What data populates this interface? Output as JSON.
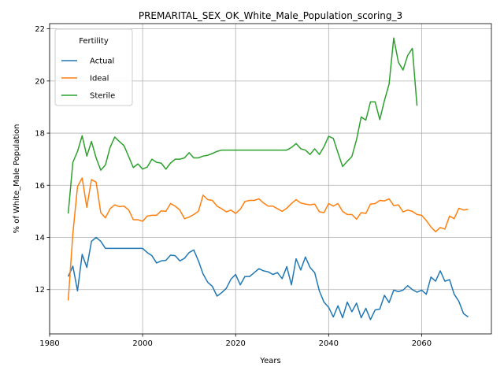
{
  "chart_data": {
    "type": "line",
    "title": "PREMARITAL_SEX_OK_White_Male_Population_scoring_3",
    "xlabel": "Years",
    "ylabel": "% of White_Male Population",
    "xlim": [
      1980,
      2075
    ],
    "ylim": [
      10.3,
      22.2
    ],
    "xticks": [
      1980,
      2000,
      2020,
      2040,
      2060
    ],
    "yticks": [
      12,
      14,
      16,
      18,
      20,
      22
    ],
    "grid": true,
    "legend": {
      "title": "Fertility",
      "position": "top-left"
    },
    "series": [
      {
        "name": "Actual",
        "color": "#1f77b4",
        "x": [
          1984,
          1985,
          1986,
          1987,
          1988,
          1989,
          1990,
          1991,
          1992,
          1993,
          1994,
          1995,
          1996,
          1997,
          1998,
          1999,
          2000,
          2001,
          2002,
          2003,
          2004,
          2005,
          2006,
          2007,
          2008,
          2009,
          2010,
          2011,
          2012,
          2013,
          2014,
          2015,
          2016,
          2017,
          2018,
          2019,
          2020,
          2021,
          2022,
          2023,
          2024,
          2025,
          2026,
          2027,
          2028,
          2029,
          2030,
          2031,
          2032,
          2033,
          2034,
          2035,
          2036,
          2037,
          2038,
          2039,
          2040,
          2041,
          2042,
          2043,
          2044,
          2045,
          2046,
          2047,
          2048,
          2049,
          2050,
          2051,
          2052,
          2053,
          2054,
          2055,
          2056,
          2057,
          2058,
          2059,
          2060,
          2061,
          2062,
          2063,
          2064,
          2065,
          2066,
          2067,
          2068,
          2069,
          2070
        ],
        "y": [
          12.5,
          12.9,
          11.95,
          13.35,
          12.85,
          13.85,
          14.0,
          13.85,
          13.58,
          13.58,
          13.58,
          13.58,
          13.58,
          13.58,
          13.58,
          13.58,
          13.58,
          13.42,
          13.3,
          13.02,
          13.1,
          13.12,
          13.32,
          13.3,
          13.1,
          13.2,
          13.42,
          13.52,
          13.1,
          12.6,
          12.28,
          12.12,
          11.75,
          11.88,
          12.05,
          12.4,
          12.58,
          12.18,
          12.5,
          12.5,
          12.65,
          12.8,
          12.72,
          12.68,
          12.58,
          12.65,
          12.42,
          12.88,
          12.18,
          13.18,
          12.75,
          13.25,
          12.85,
          12.65,
          11.95,
          11.52,
          11.32,
          10.95,
          11.38,
          10.92,
          11.52,
          11.15,
          11.48,
          10.92,
          11.28,
          10.85,
          11.22,
          11.25,
          11.78,
          11.5,
          11.98,
          11.92,
          11.98,
          12.15,
          12.0,
          11.9,
          11.98,
          11.82,
          12.48,
          12.32,
          12.72,
          12.32,
          12.38,
          11.82,
          11.55,
          11.08,
          10.95
        ]
      },
      {
        "name": "Ideal",
        "color": "#ff7f0e",
        "x": [
          1984,
          1985,
          1986,
          1987,
          1988,
          1989,
          1990,
          1991,
          1992,
          1993,
          1994,
          1995,
          1996,
          1997,
          1998,
          1999,
          2000,
          2001,
          2002,
          2003,
          2004,
          2005,
          2006,
          2007,
          2008,
          2009,
          2010,
          2011,
          2012,
          2013,
          2014,
          2015,
          2016,
          2017,
          2018,
          2019,
          2020,
          2021,
          2022,
          2023,
          2024,
          2025,
          2026,
          2027,
          2028,
          2029,
          2030,
          2031,
          2032,
          2033,
          2034,
          2035,
          2036,
          2037,
          2038,
          2039,
          2040,
          2041,
          2042,
          2043,
          2044,
          2045,
          2046,
          2047,
          2048,
          2049,
          2050,
          2051,
          2052,
          2053,
          2054,
          2055,
          2056,
          2057,
          2058,
          2059,
          2060,
          2061,
          2062,
          2063,
          2064,
          2065,
          2066,
          2067,
          2068,
          2069,
          2070
        ],
        "y": [
          11.58,
          14.15,
          15.95,
          16.28,
          15.15,
          16.22,
          16.12,
          14.95,
          14.75,
          15.1,
          15.25,
          15.18,
          15.2,
          15.05,
          14.68,
          14.68,
          14.62,
          14.82,
          14.85,
          14.85,
          15.02,
          15.0,
          15.3,
          15.2,
          15.05,
          14.72,
          14.78,
          14.88,
          15.0,
          15.62,
          15.45,
          15.42,
          15.2,
          15.1,
          14.98,
          15.05,
          14.92,
          15.08,
          15.38,
          15.42,
          15.42,
          15.48,
          15.32,
          15.2,
          15.2,
          15.1,
          15.0,
          15.12,
          15.3,
          15.45,
          15.32,
          15.28,
          15.25,
          15.28,
          14.98,
          14.95,
          15.3,
          15.2,
          15.3,
          15.0,
          14.88,
          14.88,
          14.7,
          14.95,
          14.92,
          15.28,
          15.3,
          15.42,
          15.4,
          15.48,
          15.22,
          15.25,
          14.98,
          15.05,
          15.0,
          14.88,
          14.85,
          14.65,
          14.4,
          14.22,
          14.38,
          14.32,
          14.82,
          14.72,
          15.12,
          15.05,
          15.08
        ]
      },
      {
        "name": "Sterile",
        "color": "#2ca02c",
        "x": [
          1984,
          1985,
          1986,
          1987,
          1988,
          1989,
          1990,
          1991,
          1992,
          1993,
          1994,
          1995,
          1996,
          1997,
          1998,
          1999,
          2000,
          2001,
          2002,
          2003,
          2004,
          2005,
          2006,
          2007,
          2008,
          2009,
          2010,
          2011,
          2012,
          2013,
          2014,
          2015,
          2016,
          2017,
          2018,
          2019,
          2020,
          2021,
          2022,
          2023,
          2024,
          2025,
          2026,
          2027,
          2028,
          2029,
          2030,
          2031,
          2032,
          2033,
          2034,
          2035,
          2036,
          2037,
          2038,
          2039,
          2040,
          2041,
          2042,
          2043,
          2044,
          2045,
          2046,
          2047,
          2048,
          2049,
          2050,
          2051,
          2052,
          2053,
          2054,
          2055,
          2056,
          2057,
          2058,
          2059
        ],
        "y": [
          14.92,
          16.88,
          17.3,
          17.9,
          17.12,
          17.68,
          17.05,
          16.58,
          16.78,
          17.45,
          17.85,
          17.68,
          17.52,
          17.1,
          16.68,
          16.82,
          16.62,
          16.7,
          17.0,
          16.88,
          16.85,
          16.62,
          16.85,
          17.0,
          17.0,
          17.05,
          17.25,
          17.05,
          17.05,
          17.12,
          17.15,
          17.22,
          17.3,
          17.35,
          17.35,
          17.35,
          17.35,
          17.35,
          17.35,
          17.35,
          17.35,
          17.35,
          17.35,
          17.35,
          17.35,
          17.35,
          17.35,
          17.35,
          17.45,
          17.6,
          17.4,
          17.35,
          17.18,
          17.4,
          17.18,
          17.48,
          17.88,
          17.8,
          17.25,
          16.72,
          16.92,
          17.1,
          17.75,
          18.62,
          18.5,
          19.2,
          19.2,
          18.52,
          19.25,
          19.88,
          21.65,
          20.72,
          20.42,
          20.98,
          21.25,
          19.05
        ]
      }
    ]
  }
}
